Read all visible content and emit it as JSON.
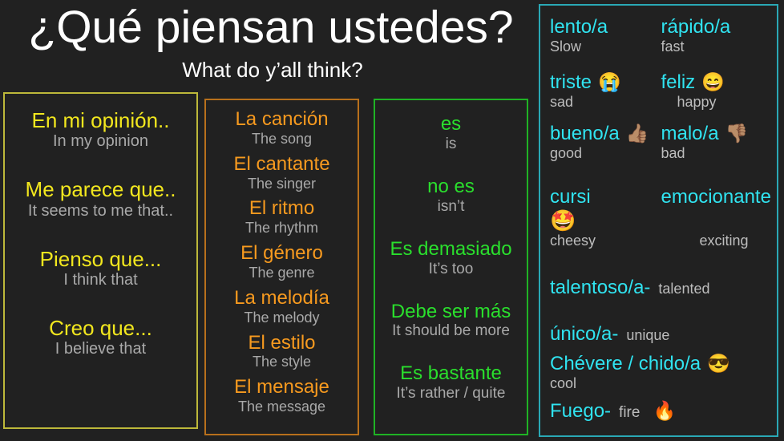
{
  "slide": {
    "title": "¿Qué piensan ustedes?",
    "subtitle": "What do y’all think?"
  },
  "colors": {
    "background": "#212121",
    "title_text": "#ffffff",
    "yellow_text": "#f2e71e",
    "yellow_border": "#bdb83a",
    "orange_text": "#f79a1f",
    "orange_border": "#b8701c",
    "green_text": "#2adf2d",
    "green_border": "#1fb325",
    "cyan_text": "#30e3f0",
    "cyan_border": "#2aa8b5",
    "translation_gray": "#a9a9a9"
  },
  "opinions_box": {
    "items": [
      {
        "es": "En mi opinión..",
        "en": "In my opinion"
      },
      {
        "es": "Me parece que..",
        "en": "It seems to me that.."
      },
      {
        "es": "Pienso que...",
        "en": "I think that"
      },
      {
        "es": "Creo que...",
        "en": "I believe that"
      }
    ]
  },
  "music_box": {
    "items": [
      {
        "es": "La canción",
        "en": "The song"
      },
      {
        "es": "El cantante",
        "en": "The singer"
      },
      {
        "es": "El ritmo",
        "en": "The rhythm"
      },
      {
        "es": "El género",
        "en": "The genre"
      },
      {
        "es": "La melodía",
        "en": "The melody"
      },
      {
        "es": "El estilo",
        "en": "The style"
      },
      {
        "es": "El mensaje",
        "en": "The message"
      }
    ]
  },
  "verbs_box": {
    "items": [
      {
        "es": "es",
        "en": "is"
      },
      {
        "es": "no es",
        "en": "isn’t"
      },
      {
        "es": "Es demasiado",
        "en": "It’s too"
      },
      {
        "es": "Debe ser más",
        "en": "It should be more"
      },
      {
        "es": "Es bastante",
        "en": "It’s rather / quite"
      }
    ]
  },
  "adjectives_box": {
    "pairs": [
      {
        "left": {
          "es": "lento/a",
          "en": "Slow"
        },
        "right": {
          "es": "rápido/a",
          "en": "fast"
        }
      },
      {
        "left": {
          "es": "triste",
          "emoji": "😭",
          "en": "sad"
        },
        "right": {
          "es": "feliz",
          "emoji": "😄",
          "en": "happy"
        }
      },
      {
        "left": {
          "es": "bueno/a",
          "emoji": "👍🏽",
          "en": "good"
        },
        "right": {
          "es": "malo/a",
          "emoji": "👎🏽",
          "en": "bad"
        }
      },
      {
        "left": {
          "es": "cursi",
          "emoji_below": "🤩",
          "en": "cheesy"
        },
        "right": {
          "es": "emocionante",
          "en": "exciting"
        }
      }
    ],
    "inline_items": [
      {
        "es": "talentoso/a-",
        "en": "talented"
      },
      {
        "es": "único/a-",
        "en": "unique"
      }
    ],
    "chevere": {
      "es": "Chévere / chido/a",
      "emoji": "😎",
      "en": "cool"
    },
    "fuego": {
      "es": "Fuego-",
      "en": "fire",
      "emoji": "🔥"
    }
  }
}
